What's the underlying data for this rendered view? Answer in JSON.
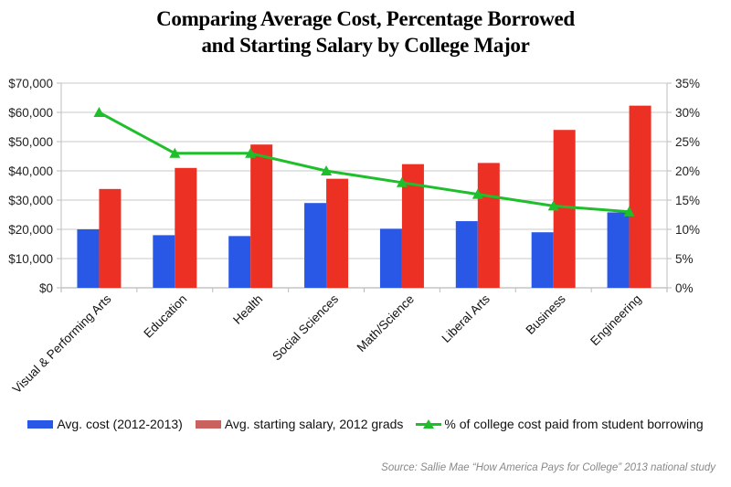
{
  "chart_data": {
    "type": "bar",
    "title": "Comparing Average Cost, Percentage Borrowed and Starting Salary by College Major",
    "title_lines": [
      "Comparing Average Cost, Percentage Borrowed",
      "and Starting Salary by College Major"
    ],
    "categories": [
      "Visual & Performing Arts",
      "Education",
      "Health",
      "Social Sciences",
      "Math/Science",
      "Liberal Arts",
      "Business",
      "Engineering"
    ],
    "series": [
      {
        "name": "Avg. cost (2012-2013)",
        "type": "bar",
        "axis": "left",
        "color": "#2a58e6",
        "values": [
          20000,
          18000,
          17700,
          29000,
          20200,
          22800,
          19000,
          25800
        ]
      },
      {
        "name": "Avg. starting salary, 2012 grads",
        "type": "bar",
        "axis": "left",
        "color": "#ec3024",
        "legend_color": "#c9615f",
        "values": [
          33800,
          41000,
          49000,
          37300,
          42300,
          42700,
          54000,
          62300
        ]
      },
      {
        "name": "% of college cost paid from student borrowing",
        "type": "line",
        "axis": "right",
        "color": "#1fbf2c",
        "marker": "triangle",
        "values": [
          30,
          23,
          23,
          20,
          18,
          16,
          14,
          13
        ]
      }
    ],
    "y_left": {
      "ylim": [
        0,
        70000
      ],
      "ticks": [
        0,
        10000,
        20000,
        30000,
        40000,
        50000,
        60000,
        70000
      ],
      "tick_labels": [
        "$0",
        "$10,000",
        "$20,000",
        "$30,000",
        "$40,000",
        "$50,000",
        "$60,000",
        "$70,000"
      ]
    },
    "y_right": {
      "ylim": [
        0,
        35
      ],
      "ticks": [
        0,
        5,
        10,
        15,
        20,
        25,
        30,
        35
      ],
      "tick_labels": [
        "0%",
        "5%",
        "10%",
        "15%",
        "20%",
        "25%",
        "30%",
        "35%"
      ]
    },
    "xlabel": "",
    "ylabel": "",
    "grid": true,
    "legend_position": "bottom",
    "source": "Source: Sallie Mae “How America Pays for College” 2013 national study"
  }
}
